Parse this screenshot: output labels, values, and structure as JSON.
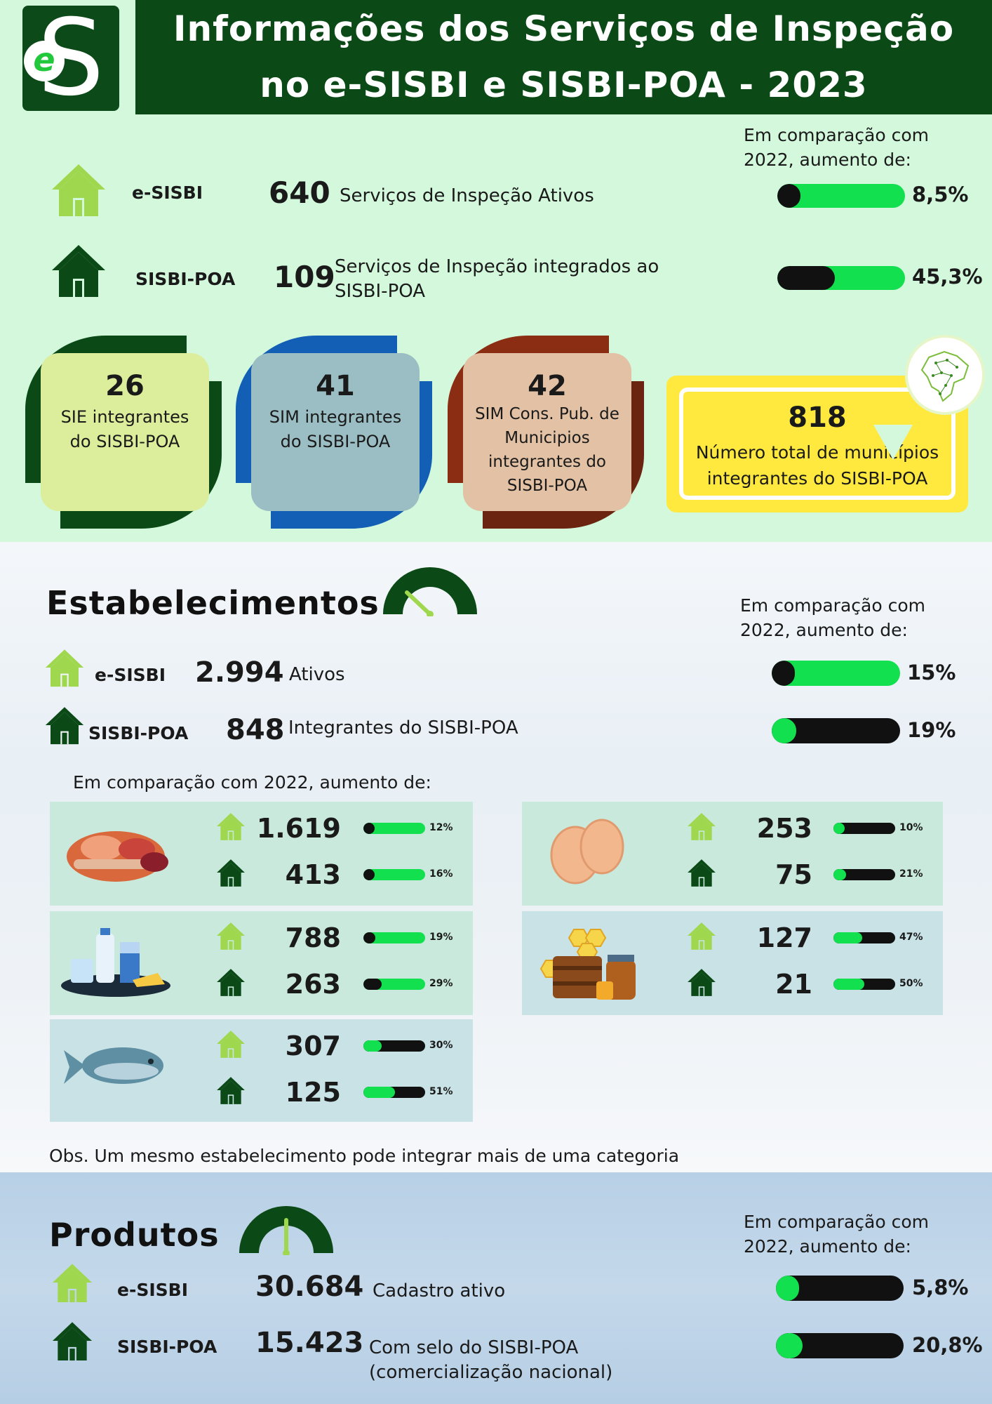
{
  "header": {
    "logo_letter": "S",
    "logo_badge": "e",
    "title_line_1": "Informações dos Serviços de Inspeção",
    "title_line_2": "no e-SISBI e SISBI-POA - 2023"
  },
  "services": {
    "comparison_note": "Em comparação com 2022, aumento de:",
    "rows": [
      {
        "label": "e-SISBI",
        "value": "640",
        "description": "Serviços de Inspeção Ativos",
        "increase": "8,5%",
        "increase_fraction": 0.085
      },
      {
        "label": "SISBI-POA",
        "value": "109",
        "description": "Serviços de Inspeção integrados ao SISBI-POA",
        "increase": "45,3%",
        "increase_fraction": 0.453
      }
    ],
    "cards": [
      {
        "value": "26",
        "text": "SIE integrantes do SISBI-POA",
        "color": "#dcee9b",
        "accent": "#0b4a16"
      },
      {
        "value": "41",
        "text": "SIM integrantes do SISBI-POA",
        "color": "#9bbec4",
        "accent": "#125fb5"
      },
      {
        "value": "42",
        "text": "SIM Cons. Pub. de Municipios integrantes do SISBI-POA",
        "color": "#e2c1a4",
        "accent": "#8a2d12"
      }
    ],
    "total": {
      "value": "818",
      "text": "Número total de municípios integrantes do SISBI-POA"
    }
  },
  "establishments": {
    "title": "Estabelecimentos",
    "comparison_note": "Em comparação com 2022, aumento de:",
    "rows": [
      {
        "label": "e-SISBI",
        "value": "2.994",
        "description": "Ativos",
        "increase": "15%",
        "increase_fraction": 0.15
      },
      {
        "label": "SISBI-POA",
        "value": "848",
        "description": "Integrantes do SISBI-POA",
        "increase": "19%",
        "increase_fraction": 0.19
      }
    ],
    "category_note": "Em comparação com 2022, aumento de:",
    "categories": [
      {
        "name": "meat-products",
        "esisbi": "1.619",
        "esisbi_pct": "12%",
        "esisbi_fraction": 0.12,
        "sisbi": "413",
        "sisbi_pct": "16%",
        "sisbi_fraction": 0.16
      },
      {
        "name": "dairy-products",
        "esisbi": "788",
        "esisbi_pct": "19%",
        "esisbi_fraction": 0.19,
        "sisbi": "263",
        "sisbi_pct": "29%",
        "sisbi_fraction": 0.29
      },
      {
        "name": "fish-products",
        "esisbi": "307",
        "esisbi_pct": "30%",
        "esisbi_fraction": 0.3,
        "sisbi": "125",
        "sisbi_pct": "51%",
        "sisbi_fraction": 0.51
      },
      {
        "name": "egg-products",
        "esisbi": "253",
        "esisbi_pct": "10%",
        "esisbi_fraction": 0.1,
        "sisbi": "75",
        "sisbi_pct": "21%",
        "sisbi_fraction": 0.21
      },
      {
        "name": "bee-products",
        "esisbi": "127",
        "esisbi_pct": "47%",
        "esisbi_fraction": 0.47,
        "sisbi": "21",
        "sisbi_pct": "50%",
        "sisbi_fraction": 0.5
      }
    ],
    "obs": "Obs. Um mesmo estabelecimento pode integrar mais de uma categoria"
  },
  "products": {
    "title": "Produtos",
    "comparison_note": "Em comparação com 2022, aumento de:",
    "rows": [
      {
        "label": "e-SISBI",
        "value": "30.684",
        "description": "Cadastro ativo",
        "increase": "5,8%",
        "increase_fraction": 0.058
      },
      {
        "label": "SISBI-POA",
        "value": "15.423",
        "description": "Com selo do SISBI-POA (comercialização nacional)",
        "increase": "20,8%",
        "increase_fraction": 0.208
      }
    ]
  },
  "colors": {
    "dark_green": "#0b4a16",
    "light_green_icon": "#9fd84f",
    "bar_green": "#13e04f",
    "bar_black": "#111111",
    "mint_background": "#d3f8dc",
    "yellow": "#ffe93f"
  },
  "icons": {
    "esisbi": "house-light-icon",
    "sisbi": "house-dark-icon",
    "map": "brazil-map-icon",
    "gauge": "gauge-icon"
  }
}
